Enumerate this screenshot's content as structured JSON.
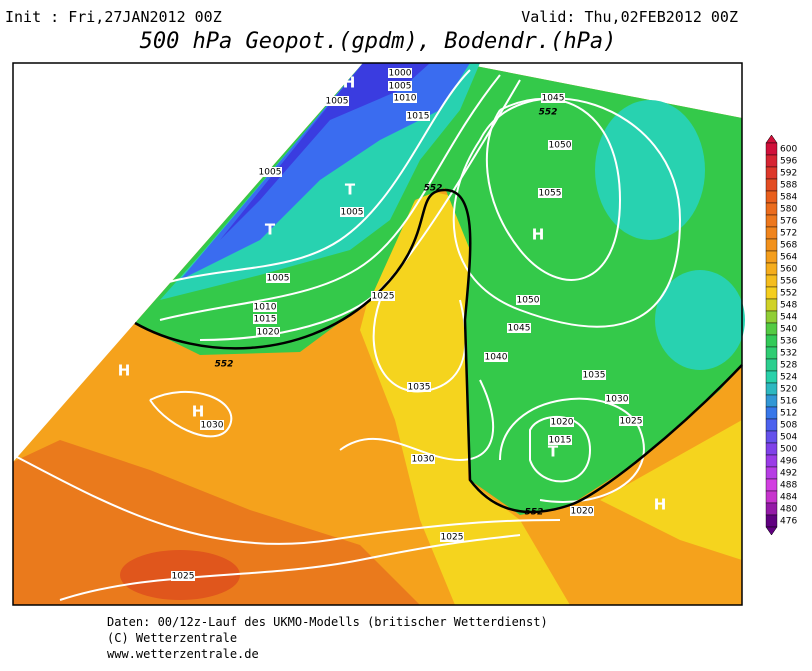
{
  "header": {
    "init": "Init : Fri,27JAN2012 00Z",
    "valid": "Valid: Thu,02FEB2012 00Z",
    "title": "500 hPa Geopot.(gpdm), Bodendr.(hPa)"
  },
  "map": {
    "pressure_labels": [
      1000,
      1005,
      1010,
      1005,
      1015,
      1005,
      1005,
      1005,
      1010,
      1015,
      1020,
      1025,
      1045,
      1050,
      1055,
      1050,
      1045,
      1040,
      1035,
      1030,
      1025,
      1020,
      1015,
      1035,
      1030,
      1030,
      1020,
      1025,
      1025
    ],
    "geopotential_labels": [
      552,
      552,
      552,
      552
    ],
    "centers": [
      "H",
      "T",
      "T",
      "H",
      "H",
      "H",
      "T",
      "H"
    ]
  },
  "colorbar": {
    "labels": [
      600,
      596,
      592,
      588,
      584,
      580,
      576,
      572,
      568,
      564,
      560,
      556,
      552,
      548,
      544,
      540,
      536,
      532,
      528,
      524,
      520,
      516,
      512,
      508,
      504,
      500,
      496,
      492,
      488,
      484,
      480,
      476
    ]
  },
  "footer": {
    "lines": [
      "Daten: 00/12z-Lauf des UKMO-Modells (britischer Wetterdienst)",
      "(C) Wetterzentrale",
      "www.wetterzentrale.de"
    ]
  }
}
